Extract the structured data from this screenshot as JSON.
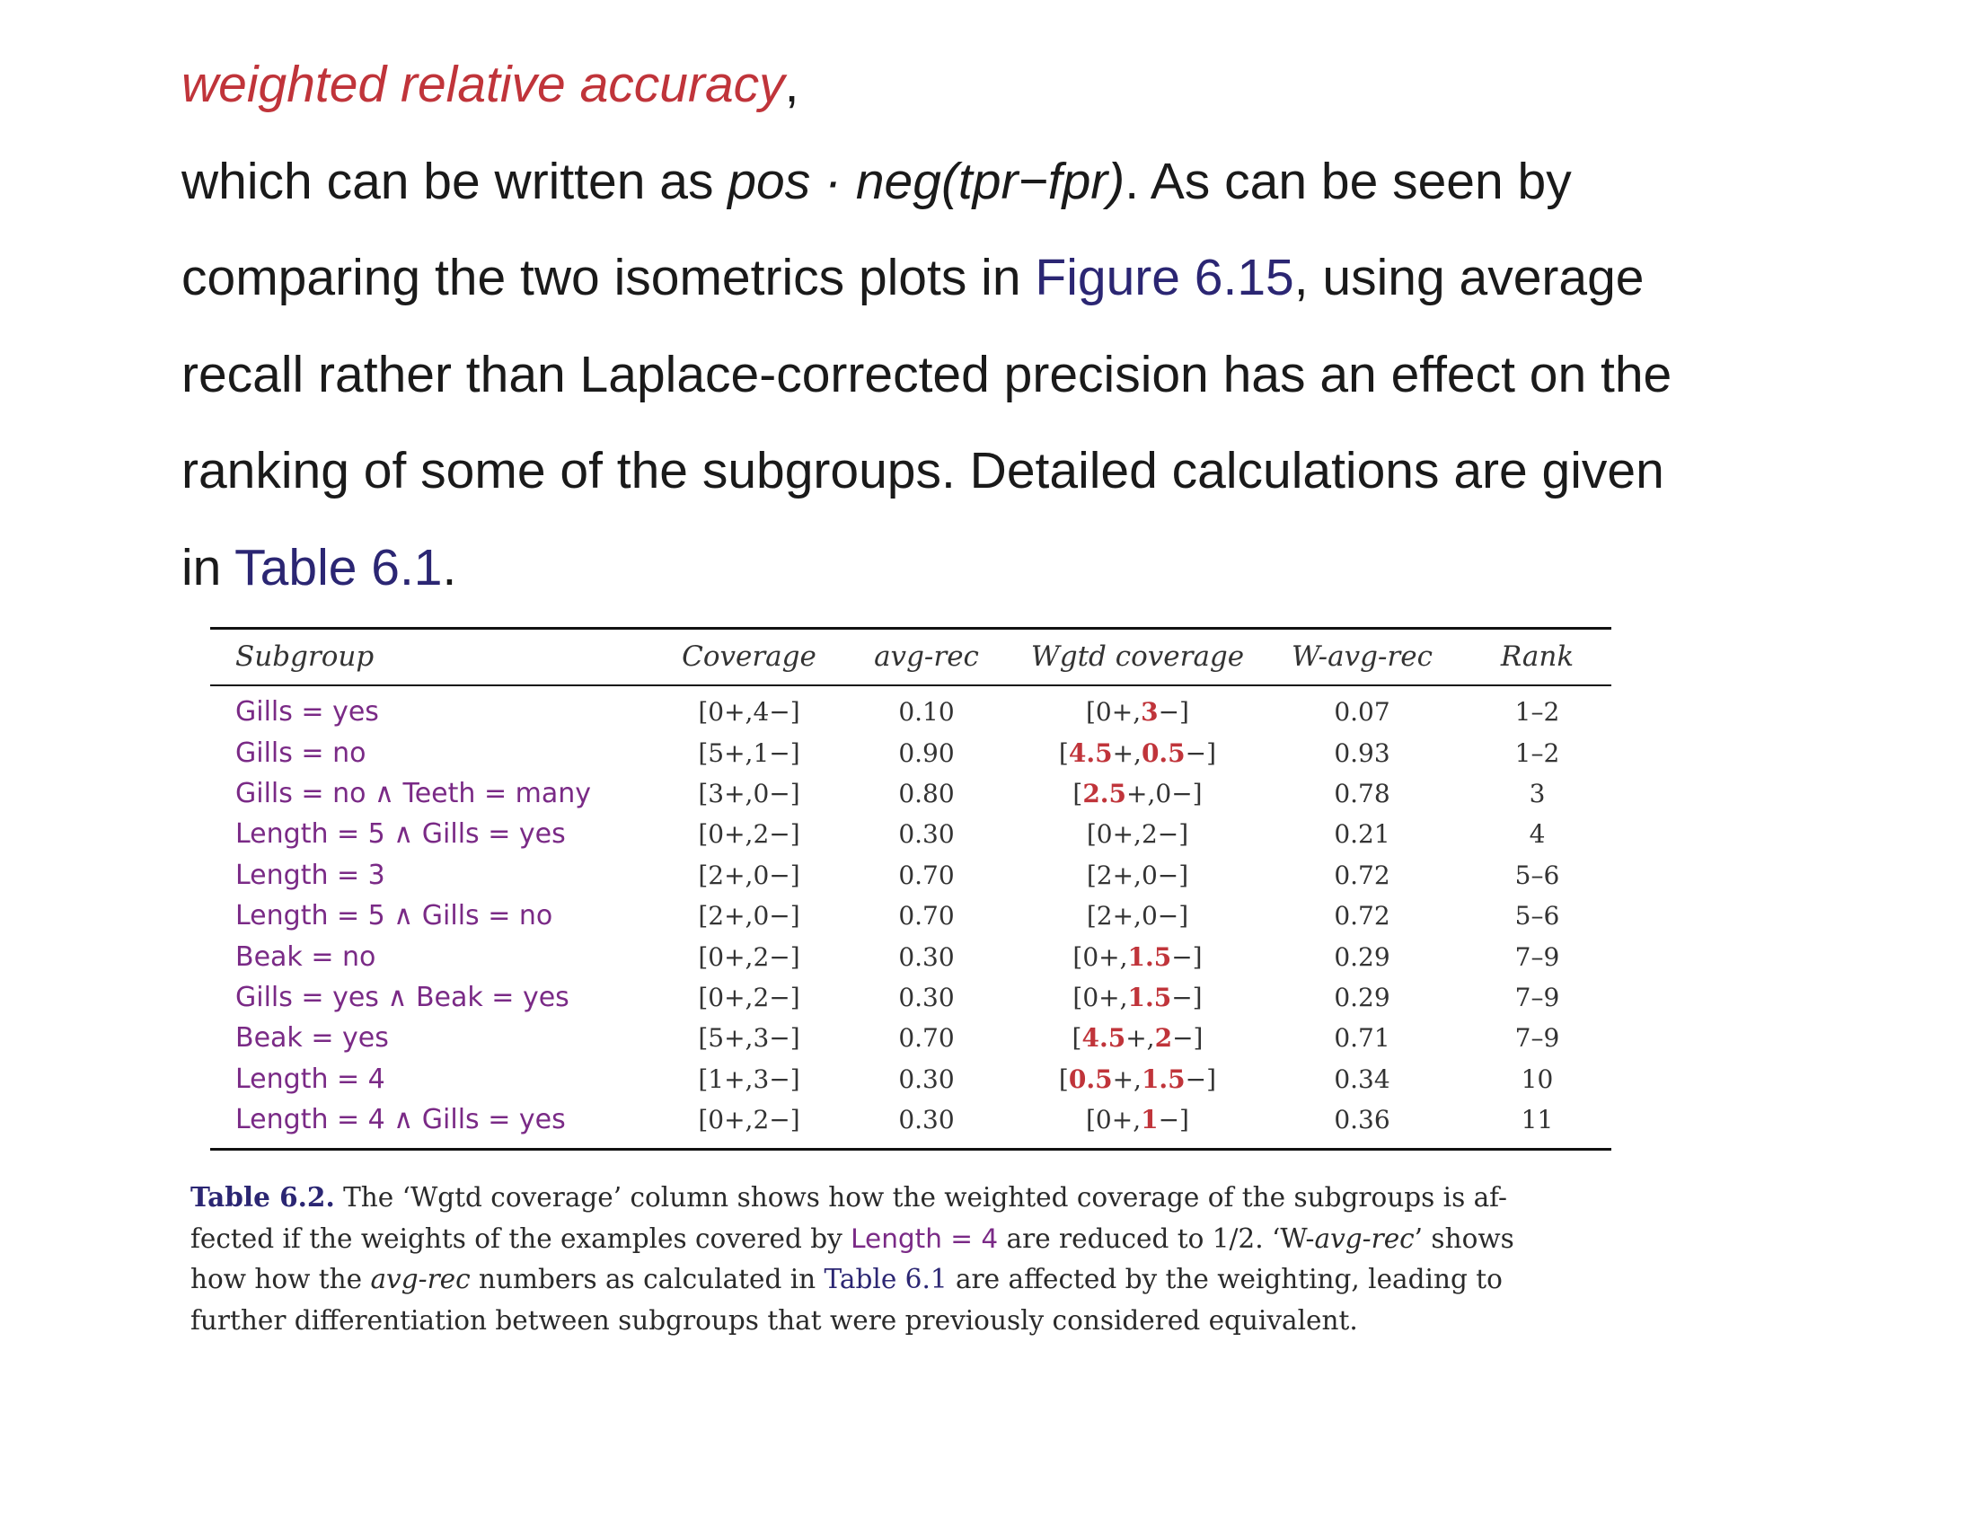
{
  "paragraph": {
    "line1_term": "weighted relative accuracy",
    "line1_end": ",",
    "line2_a": "which can be written as ",
    "line2_formula": "pos · neg(tpr−fpr)",
    "line2_b": ". As can be seen by",
    "line3_a": "comparing the two isometrics plots in ",
    "line3_link": "Figure 6.15",
    "line3_b": ", using average",
    "line4": "recall rather than Laplace-corrected precision has an effect on the",
    "line5": "ranking of some of the subgroups. Detailed calculations are given",
    "line6_a": "in ",
    "line6_link": "Table 6.1",
    "line6_b": "."
  },
  "table": {
    "headers": [
      "Subgroup",
      "Coverage",
      "avg-rec",
      "Wgtd coverage",
      "W-avg-rec",
      "Rank"
    ],
    "rows": [
      {
        "subgroup": "Gills = yes",
        "coverage": "[0+,4−]",
        "avg_rec": "0.10",
        "wgtd_a": "[0+,",
        "wgtd_b": "",
        "wgtd_c": "3",
        "wgtd_d": "−]",
        "w_avg_rec": "0.07",
        "rank": "1–2"
      },
      {
        "subgroup": "Gills = no",
        "coverage": "[5+,1−]",
        "avg_rec": "0.90",
        "wgtd_a": "[",
        "wgtd_b": "4.5",
        "wgtd_c": "+,",
        "wgtd_d": "0.5",
        "wgtd_e": "−]",
        "w_avg_rec": "0.93",
        "rank": "1–2"
      },
      {
        "subgroup": "Gills = no  ∧ Teeth = many",
        "coverage": "[3+,0−]",
        "avg_rec": "0.80",
        "wgtd_a": "[",
        "wgtd_b": "2.5",
        "wgtd_c": "+,0−]",
        "w_avg_rec": "0.78",
        "rank": "3"
      },
      {
        "subgroup": "Length = 5  ∧ Gills = yes",
        "coverage": "[0+,2−]",
        "avg_rec": "0.30",
        "wgtd_plain": "[0+,2−]",
        "w_avg_rec": "0.21",
        "rank": "4"
      },
      {
        "subgroup": "Length = 3",
        "coverage": "[2+,0−]",
        "avg_rec": "0.70",
        "wgtd_plain": "[2+,0−]",
        "w_avg_rec": "0.72",
        "rank": "5–6"
      },
      {
        "subgroup": "Length = 5  ∧ Gills = no",
        "coverage": "[2+,0−]",
        "avg_rec": "0.70",
        "wgtd_plain": "[2+,0−]",
        "w_avg_rec": "0.72",
        "rank": "5–6"
      },
      {
        "subgroup": "Beak = no",
        "coverage": "[0+,2−]",
        "avg_rec": "0.30",
        "wgtd_a": "[0+,",
        "wgtd_c": "1.5",
        "wgtd_d": "−]",
        "w_avg_rec": "0.29",
        "rank": "7–9"
      },
      {
        "subgroup": "Gills = yes  ∧ Beak = yes",
        "coverage": "[0+,2−]",
        "avg_rec": "0.30",
        "wgtd_a": "[0+,",
        "wgtd_c": "1.5",
        "wgtd_d": "−]",
        "w_avg_rec": "0.29",
        "rank": "7–9"
      },
      {
        "subgroup": "Beak = yes",
        "coverage": "[5+,3−]",
        "avg_rec": "0.70",
        "wgtd_a": "[",
        "wgtd_b": "4.5",
        "wgtd_c": "+,",
        "wgtd_d": "2",
        "wgtd_e": "−]",
        "w_avg_rec": "0.71",
        "rank": "7–9"
      },
      {
        "subgroup": "Length = 4",
        "coverage": "[1+,3−]",
        "avg_rec": "0.30",
        "wgtd_a": "[",
        "wgtd_b": "0.5",
        "wgtd_c": "+,",
        "wgtd_d": "1.5",
        "wgtd_e": "−]",
        "w_avg_rec": "0.34",
        "rank": "10"
      },
      {
        "subgroup": "Length = 4  ∧ Gills = yes",
        "coverage": "[0+,2−]",
        "avg_rec": "0.30",
        "wgtd_a": "[0+,",
        "wgtd_c": "1",
        "wgtd_d": "−]",
        "w_avg_rec": "0.36",
        "rank": "11"
      }
    ]
  },
  "caption": {
    "label": "Table 6.2.",
    "text1": " The ‘Wgtd coverage’ column shows how the weighted coverage of the subgroups is af-",
    "text2a": "fected if the weights of the examples covered by ",
    "text2_expr": "Length = 4",
    "text2b": " are reduced to 1/2. ‘W-",
    "text2_it": "avg-rec",
    "text2c": "’ shows",
    "text3a": "how how the ",
    "text3_it": "avg-rec",
    "text3b": " numbers as calculated in ",
    "text3_link": "Table 6.1",
    "text3c": " are affected by the weighting, leading to",
    "text4": "further differentiation between subgroups that were previously considered equivalent."
  },
  "colors": {
    "term": "#c0343a",
    "link": "#2b2673",
    "subgroup": "#7a2a86",
    "highlight": "#c0343a"
  }
}
